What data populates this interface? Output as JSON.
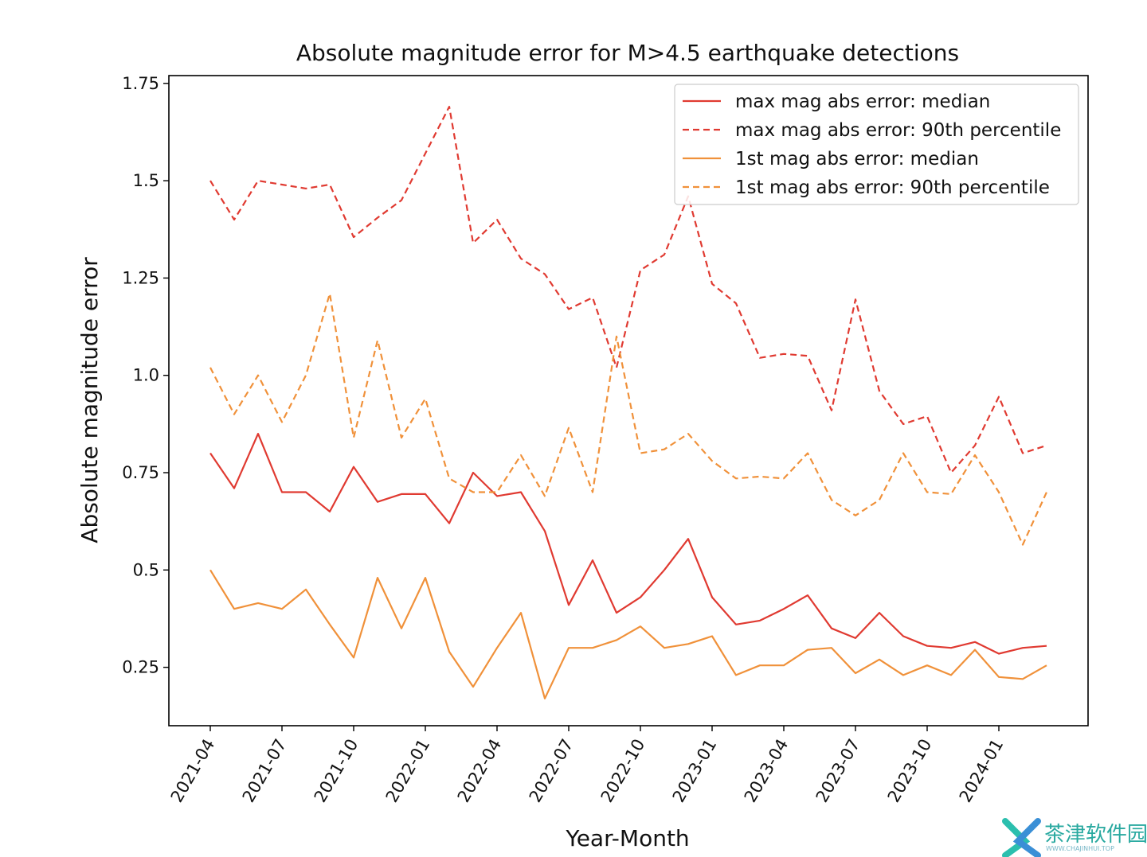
{
  "chart_data": {
    "type": "line",
    "title": "Absolute magnitude error for M>4.5 earthquake detections",
    "xlabel": "Year-Month",
    "ylabel": "Absolute magnitude error",
    "x_ticks": [
      "2021-04",
      "2021-07",
      "2021-10",
      "2022-01",
      "2022-04",
      "2022-07",
      "2022-10",
      "2023-01",
      "2023-04",
      "2023-07",
      "2023-10",
      "2024-01"
    ],
    "y_ticks": [
      "0.25",
      "0.5",
      "0.75",
      "1.0",
      "1.25",
      "1.5",
      "1.75"
    ],
    "y_tick_values": [
      0.25,
      0.5,
      0.75,
      1.0,
      1.25,
      1.5,
      1.75
    ],
    "ylim": [
      0.1,
      1.77
    ],
    "x": [
      "2021-04",
      "2021-05",
      "2021-06",
      "2021-07",
      "2021-08",
      "2021-09",
      "2021-10",
      "2021-11",
      "2021-12",
      "2022-01",
      "2022-02",
      "2022-03",
      "2022-04",
      "2022-05",
      "2022-06",
      "2022-07",
      "2022-08",
      "2022-09",
      "2022-10",
      "2022-11",
      "2022-12",
      "2023-01",
      "2023-02",
      "2023-03",
      "2023-04",
      "2023-05",
      "2023-06",
      "2023-07",
      "2023-08",
      "2023-09",
      "2023-10",
      "2023-11",
      "2023-12",
      "2024-01",
      "2024-02",
      "2024-03"
    ],
    "legend_position": "top-right",
    "series": [
      {
        "name": "max mag abs error: median",
        "color": "#e03a31",
        "style": "solid",
        "values": [
          0.8,
          0.71,
          0.85,
          0.7,
          0.7,
          0.65,
          0.765,
          0.675,
          0.695,
          0.695,
          0.62,
          0.75,
          0.69,
          0.7,
          0.6,
          0.41,
          0.525,
          0.39,
          0.43,
          0.5,
          0.58,
          0.43,
          0.36,
          0.37,
          0.4,
          0.435,
          0.35,
          0.325,
          0.39,
          0.33,
          0.305,
          0.3,
          0.315,
          0.285,
          0.3,
          0.305
        ]
      },
      {
        "name": "max mag abs error: 90th percentile",
        "color": "#e03a31",
        "style": "dashed",
        "values": [
          1.5,
          1.4,
          1.5,
          1.49,
          1.48,
          1.49,
          1.355,
          1.405,
          1.45,
          1.57,
          1.69,
          1.34,
          1.4,
          1.3,
          1.26,
          1.17,
          1.2,
          1.02,
          1.27,
          1.31,
          1.46,
          1.235,
          1.185,
          1.045,
          1.055,
          1.05,
          0.91,
          1.195,
          0.96,
          0.875,
          0.895,
          0.75,
          0.82,
          0.945,
          0.8,
          0.82
        ]
      },
      {
        "name": "1st mag abs error: median",
        "color": "#f0913a",
        "style": "solid",
        "values": [
          0.5,
          0.4,
          0.415,
          0.4,
          0.45,
          0.36,
          0.275,
          0.48,
          0.35,
          0.48,
          0.29,
          0.2,
          0.3,
          0.39,
          0.17,
          0.3,
          0.3,
          0.32,
          0.355,
          0.3,
          0.31,
          0.33,
          0.23,
          0.255,
          0.255,
          0.295,
          0.3,
          0.235,
          0.27,
          0.23,
          0.255,
          0.23,
          0.295,
          0.225,
          0.22,
          0.255
        ]
      },
      {
        "name": "1st mag abs error: 90th percentile",
        "color": "#f0913a",
        "style": "dashed",
        "values": [
          1.02,
          0.9,
          1.0,
          0.88,
          1.0,
          1.21,
          0.84,
          1.09,
          0.84,
          0.94,
          0.735,
          0.7,
          0.7,
          0.795,
          0.69,
          0.865,
          0.7,
          1.1,
          0.8,
          0.81,
          0.85,
          0.78,
          0.735,
          0.74,
          0.735,
          0.8,
          0.68,
          0.64,
          0.68,
          0.8,
          0.7,
          0.695,
          0.795,
          0.7,
          0.565,
          0.7
        ]
      }
    ]
  },
  "watermark": {
    "cn": "茶津软件园",
    "en": "WWW.CHAJINHUI.TOP"
  }
}
